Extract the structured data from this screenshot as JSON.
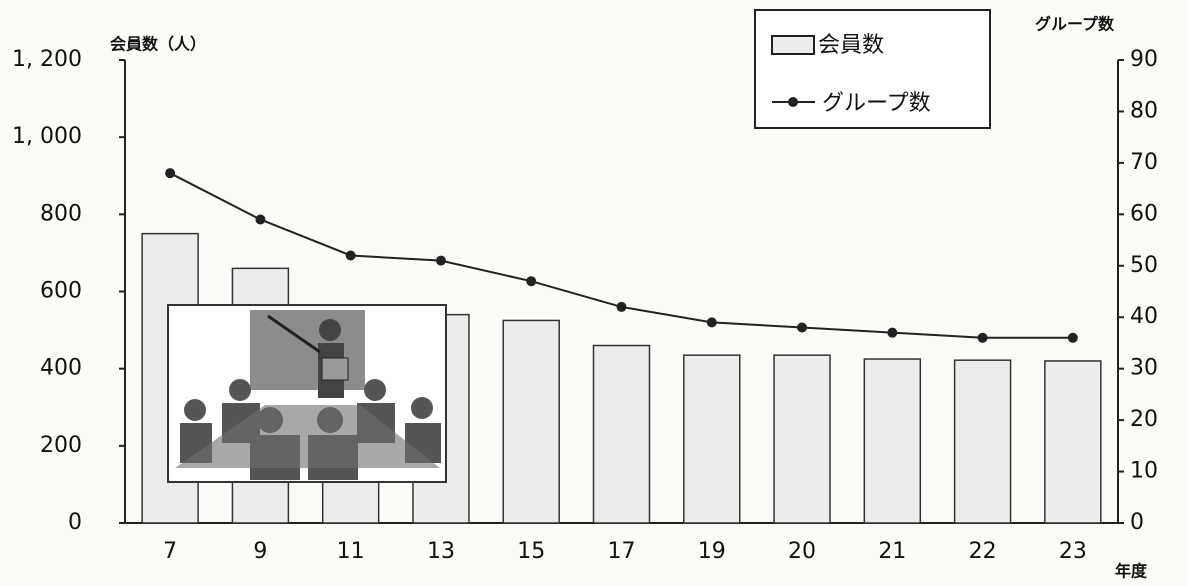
{
  "chart_data": {
    "type": "bar",
    "y_label": "会員数（人）",
    "y2_label": "グループ数",
    "x_label": "年度",
    "categories": [
      "7",
      "9",
      "11",
      "13",
      "15",
      "17",
      "19",
      "20",
      "21",
      "22",
      "23"
    ],
    "series": [
      {
        "name": "会員数",
        "type": "bar",
        "color": "#ececec",
        "values": [
          750,
          660,
          560,
          540,
          525,
          460,
          435,
          435,
          425,
          422,
          420
        ]
      },
      {
        "name": "グループ数",
        "type": "line",
        "axis": "y2",
        "color": "#222222",
        "values": [
          68,
          59,
          52,
          51,
          47,
          42,
          39,
          38,
          37,
          36,
          36
        ]
      }
    ],
    "ylim": [
      0,
      1200
    ],
    "yticks": [
      0,
      200,
      400,
      600,
      800,
      {
        "value": 1000,
        "label": "1, 000"
      },
      {
        "value": 1200,
        "label": "1, 200"
      }
    ],
    "y2lim": [
      0,
      90
    ],
    "y2ticks": [
      0,
      10,
      20,
      30,
      40,
      50,
      60,
      70,
      80,
      90
    ]
  }
}
